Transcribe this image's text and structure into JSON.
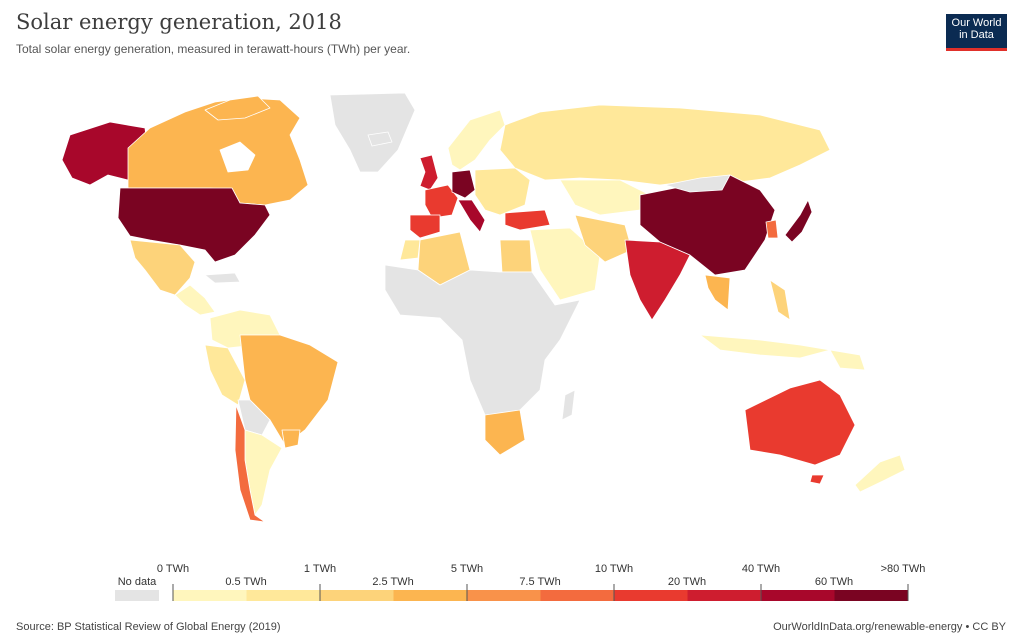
{
  "title": "Solar energy generation, 2018",
  "subtitle": "Total solar energy generation, measured in terawatt-hours (TWh) per year.",
  "logo": {
    "line1": "Our World",
    "line2": "in Data"
  },
  "legend": {
    "no_data_label": "No data",
    "no_data_color": "#e4e4e4",
    "top_labels": [
      "0 TWh",
      "1 TWh",
      "5 TWh",
      "10 TWh",
      "40 TWh",
      ">80 TWh"
    ],
    "bottom_labels": [
      "0.5 TWh",
      "2.5 TWh",
      "7.5 TWh",
      "20 TWh",
      "60 TWh"
    ],
    "colors": [
      "#fff6bd",
      "#ffe89a",
      "#fdd37a",
      "#fcb550",
      "#f9924a",
      "#f36b3e",
      "#e93a2f",
      "#ce1d2f",
      "#a8072b",
      "#7a0422"
    ]
  },
  "colors": {
    "none": "#e4e4e4",
    "c1": "#fff6bd",
    "c2": "#ffe89a",
    "c3": "#fdd37a",
    "c4": "#fcb550",
    "c5": "#f9924a",
    "c6": "#f36b3e",
    "c7": "#e93a2f",
    "c8": "#ce1d2f",
    "c9": "#a8072b",
    "c10": "#7a0422"
  },
  "footer": {
    "source": "Source: BP Statistical Review of Global Energy (2019)",
    "credit": "OurWorldInData.org/renewable-energy • CC BY"
  }
}
